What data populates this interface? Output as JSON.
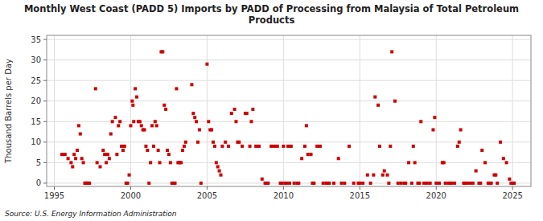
{
  "chart_data": {
    "type": "scatter",
    "title": "Monthly West Coast (PADD 5) Imports by PADD of Processing from Malaysia of Total Petroleum\nProducts",
    "y_label": "Thousand Barrels per Day",
    "annotations": [
      "Source: U.S. Energy Information Administration"
    ],
    "color": "#cc0000",
    "marker": "square",
    "grid": true,
    "xlim": [
      1994.5,
      2026.2
    ],
    "ylim": [
      -0.8,
      36
    ],
    "xticks": [
      1995,
      2000,
      2005,
      2010,
      2015,
      2020,
      2025
    ],
    "yticks": [
      0,
      5,
      10,
      15,
      20,
      25,
      30,
      35
    ],
    "x": [
      1995.5,
      1995.7,
      1995.9,
      1996.1,
      1996.2,
      1996.3,
      1996.4,
      1996.5,
      1996.6,
      1996.7,
      1996.8,
      1996.9,
      1997.0,
      1997.05,
      1997.1,
      1997.15,
      1997.2,
      1997.25,
      1997.3,
      1997.7,
      1997.8,
      1998.0,
      1998.2,
      1998.3,
      1998.4,
      1998.5,
      1998.6,
      1998.7,
      1998.8,
      1999.0,
      1999.1,
      1999.2,
      1999.3,
      1999.4,
      1999.5,
      1999.6,
      1999.7,
      1999.8,
      1999.9,
      2000.0,
      2000.1,
      2000.15,
      2000.2,
      2000.3,
      2000.4,
      2000.5,
      2000.6,
      2000.7,
      2000.8,
      2000.9,
      2001.0,
      2001.1,
      2001.2,
      2001.3,
      2001.4,
      2001.5,
      2001.6,
      2001.7,
      2001.8,
      2001.9,
      2002.0,
      2002.1,
      2002.2,
      2002.3,
      2002.4,
      2002.5,
      2002.6,
      2002.7,
      2002.8,
      2002.9,
      2003.0,
      2003.1,
      2003.2,
      2003.3,
      2003.4,
      2003.5,
      2003.6,
      2004.0,
      2004.1,
      2004.2,
      2004.3,
      2004.4,
      2004.5,
      2004.6,
      2005.0,
      2005.1,
      2005.2,
      2005.3,
      2005.4,
      2005.5,
      2005.6,
      2005.7,
      2005.8,
      2005.9,
      2006.0,
      2006.2,
      2006.4,
      2006.6,
      2006.8,
      2006.9,
      2007.0,
      2007.1,
      2007.3,
      2007.5,
      2007.6,
      2007.8,
      2007.9,
      2008.0,
      2008.2,
      2008.4,
      2008.6,
      2008.8,
      2008.9,
      2009.0,
      2009.2,
      2009.4,
      2009.6,
      2009.8,
      2009.9,
      2010.0,
      2010.1,
      2010.2,
      2010.3,
      2010.4,
      2010.5,
      2010.7,
      2010.9,
      2011.0,
      2011.2,
      2011.4,
      2011.5,
      2011.6,
      2011.8,
      2011.9,
      2012.0,
      2012.2,
      2012.4,
      2012.6,
      2012.8,
      2012.9,
      2013.0,
      2013.3,
      2013.6,
      2013.8,
      2014.0,
      2014.3,
      2014.6,
      2014.9,
      2015.0,
      2015.2,
      2015.5,
      2015.7,
      2015.9,
      2016.0,
      2016.2,
      2016.3,
      2016.5,
      2016.6,
      2016.8,
      2016.9,
      2017.0,
      2017.1,
      2017.3,
      2017.5,
      2017.7,
      2017.9,
      2018.0,
      2018.2,
      2018.4,
      2018.5,
      2018.6,
      2018.8,
      2018.9,
      2019.0,
      2019.2,
      2019.4,
      2019.6,
      2019.8,
      2019.9,
      2020.0,
      2020.2,
      2020.4,
      2020.5,
      2020.6,
      2020.8,
      2020.9,
      2021.0,
      2021.2,
      2021.4,
      2021.5,
      2021.6,
      2021.8,
      2021.9,
      2022.0,
      2022.2,
      2022.4,
      2022.6,
      2022.8,
      2022.9,
      2023.0,
      2023.2,
      2023.4,
      2023.5,
      2023.6,
      2023.8,
      2023.9,
      2024.0,
      2024.2,
      2024.4,
      2024.6,
      2024.8,
      2024.9,
      2025.0,
      2025.1
    ],
    "values": [
      7,
      7,
      6,
      5,
      4,
      7,
      6,
      8,
      14,
      12,
      6,
      5,
      0,
      0,
      0,
      0,
      0,
      0,
      0,
      23,
      5,
      4,
      8,
      7,
      5,
      7,
      6,
      12,
      15,
      16,
      7,
      14,
      15,
      9,
      8,
      9,
      0,
      0,
      2,
      14,
      20,
      19,
      15,
      23,
      21,
      15,
      15,
      14,
      13,
      13,
      9,
      8,
      0,
      5,
      14,
      9,
      15,
      14,
      8,
      5,
      32,
      32,
      19,
      18,
      8,
      7,
      5,
      0,
      0,
      0,
      23,
      5,
      5,
      5,
      8,
      9,
      10,
      24,
      17,
      16,
      15,
      10,
      13,
      0,
      29,
      15,
      13,
      13,
      10,
      9,
      5,
      4,
      3,
      2,
      9,
      10,
      9,
      17,
      18,
      15,
      10,
      10,
      9,
      17,
      17,
      9,
      15,
      18,
      9,
      9,
      1,
      0,
      0,
      0,
      9,
      9,
      9,
      0,
      0,
      9,
      0,
      0,
      9,
      0,
      9,
      0,
      0,
      0,
      6,
      9,
      14,
      7,
      7,
      0,
      0,
      9,
      9,
      0,
      0,
      0,
      0,
      0,
      6,
      0,
      0,
      9,
      0,
      0,
      0,
      0,
      2,
      0,
      2,
      21,
      19,
      9,
      2,
      3,
      2,
      0,
      9,
      32,
      20,
      0,
      0,
      0,
      0,
      5,
      0,
      9,
      5,
      0,
      0,
      15,
      0,
      0,
      0,
      13,
      16,
      0,
      0,
      5,
      5,
      0,
      0,
      0,
      0,
      0,
      9,
      10,
      13,
      0,
      0,
      0,
      0,
      0,
      3,
      0,
      0,
      8,
      5,
      0,
      0,
      0,
      2,
      2,
      0,
      10,
      6,
      5,
      1,
      0,
      0,
      0
    ]
  }
}
